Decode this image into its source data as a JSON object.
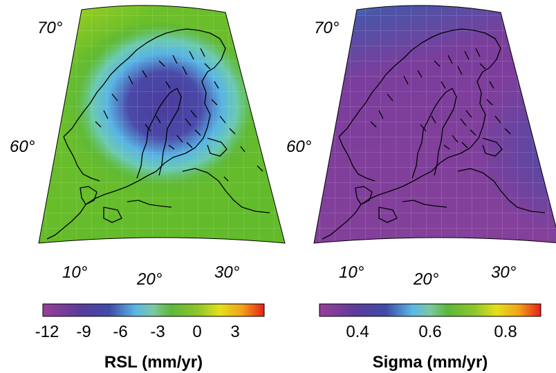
{
  "panels": [
    {
      "id": "rsl",
      "lat_labels": [
        "70°",
        "60°"
      ],
      "lon_labels": [
        "10°",
        "20°",
        "30°"
      ],
      "colorbar": {
        "ticks": [
          "-12",
          "-9",
          "-6",
          "-3",
          "0",
          "3"
        ],
        "title": "RSL (mm/yr)"
      }
    },
    {
      "id": "sigma",
      "lat_labels": [
        "70°",
        "60°"
      ],
      "lon_labels": [
        "10°",
        "20°",
        "30°"
      ],
      "colorbar": {
        "ticks": [
          "0.4",
          "0.6",
          "0.8"
        ],
        "title": "Sigma (mm/yr)"
      }
    }
  ],
  "colors": {
    "palette": [
      "#8b3a94",
      "#5b3c9c",
      "#4a4aa8",
      "#3a6dc0",
      "#5cc0e0",
      "#7ad0a0",
      "#5cb83a",
      "#66bb2a",
      "#a6cc1e",
      "#e8e01a",
      "#f0a018",
      "#e83018"
    ]
  }
}
